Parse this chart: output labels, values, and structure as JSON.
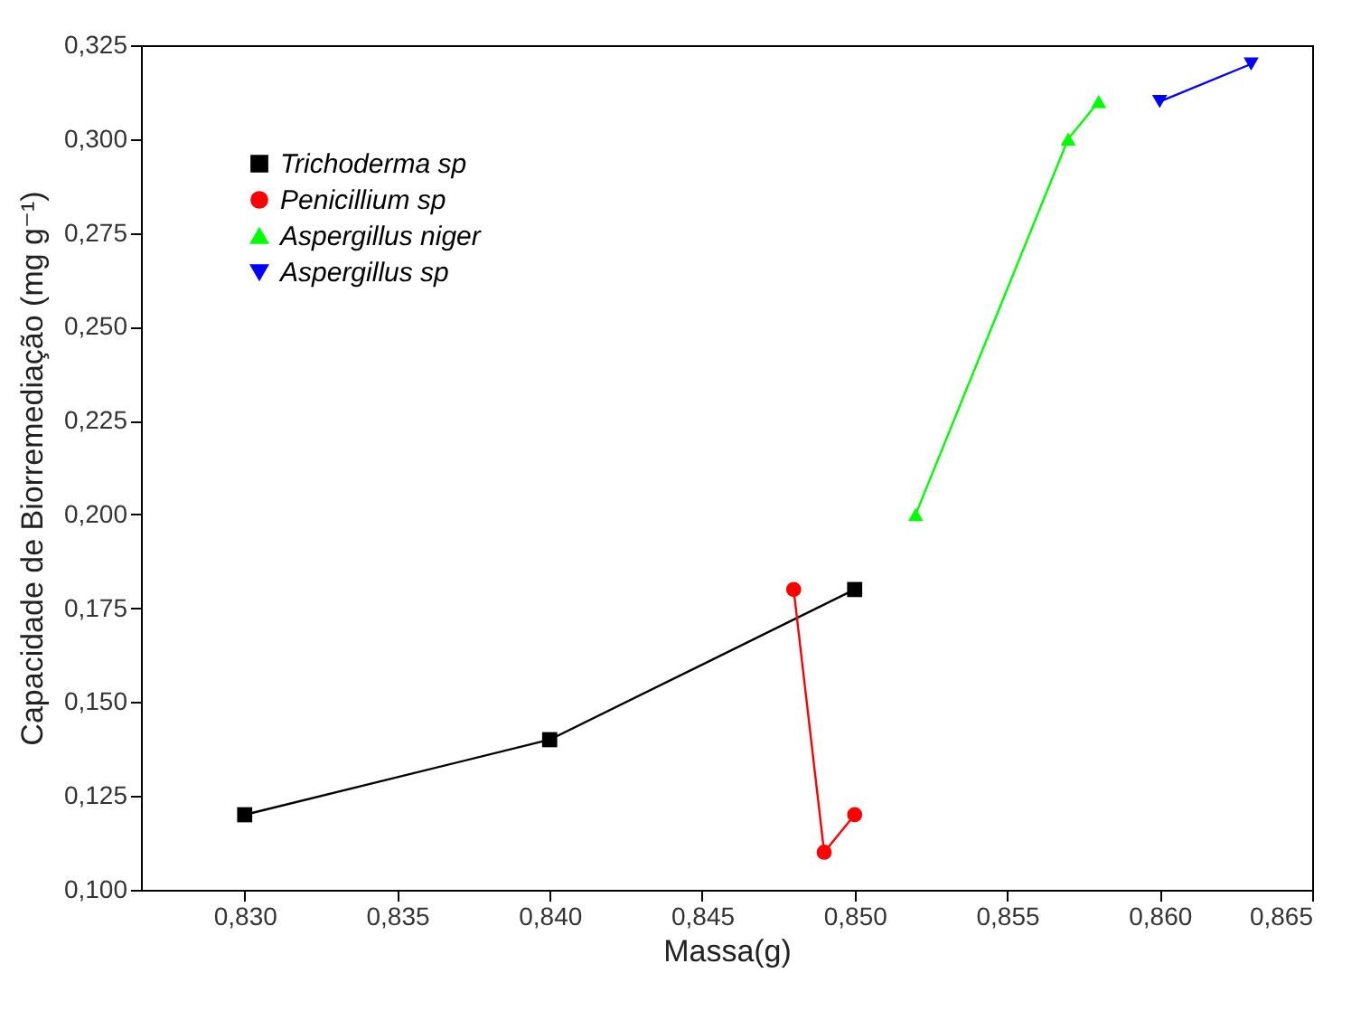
{
  "chart_data": {
    "type": "line",
    "xlabel": "Massa(g)",
    "ylabel": "Capacidade de Biorremediação (mg g⁻¹)",
    "xlim": [
      0.8266,
      0.865
    ],
    "xticks": [
      {
        "value": 0.83,
        "label": "0,830"
      },
      {
        "value": 0.835,
        "label": "0,835"
      },
      {
        "value": 0.84,
        "label": "0,840"
      },
      {
        "value": 0.845,
        "label": "0,845"
      },
      {
        "value": 0.85,
        "label": "0,850"
      },
      {
        "value": 0.855,
        "label": "0,855"
      },
      {
        "value": 0.86,
        "label": "0,860"
      },
      {
        "value": 0.865,
        "label": "0,865"
      }
    ],
    "ylim": [
      0.1,
      0.325
    ],
    "yticks": [
      {
        "value": 0.1,
        "label": "0,100"
      },
      {
        "value": 0.125,
        "label": "0,125"
      },
      {
        "value": 0.15,
        "label": "0,150"
      },
      {
        "value": 0.175,
        "label": "0,175"
      },
      {
        "value": 0.2,
        "label": "0,200"
      },
      {
        "value": 0.225,
        "label": "0,225"
      },
      {
        "value": 0.25,
        "label": "0,250"
      },
      {
        "value": 0.275,
        "label": "0,275"
      },
      {
        "value": 0.3,
        "label": "0,300"
      },
      {
        "value": 0.325,
        "label": "0,325"
      }
    ],
    "legend": "top left",
    "grid": false,
    "line_style": "solid",
    "series": [
      {
        "name": "Trichoderma sp",
        "color": "#000000",
        "marker": "square",
        "x": [
          0.83,
          0.84,
          0.85
        ],
        "values": [
          0.12,
          0.14,
          0.18
        ]
      },
      {
        "name": "Penicillium sp",
        "color": "#ff0000",
        "marker": "circle",
        "x": [
          0.848,
          0.849,
          0.85
        ],
        "values": [
          0.18,
          0.11,
          0.12
        ]
      },
      {
        "name": "Aspergillus niger",
        "color": "#00ff00",
        "marker": "triangle",
        "x": [
          0.852,
          0.857,
          0.858
        ],
        "values": [
          0.2,
          0.3,
          0.31
        ]
      },
      {
        "name": "Aspergillus sp",
        "color": "#0000ff",
        "marker": "triangle-down",
        "x": [
          0.86,
          0.863
        ],
        "values": [
          0.31,
          0.32
        ]
      }
    ]
  }
}
